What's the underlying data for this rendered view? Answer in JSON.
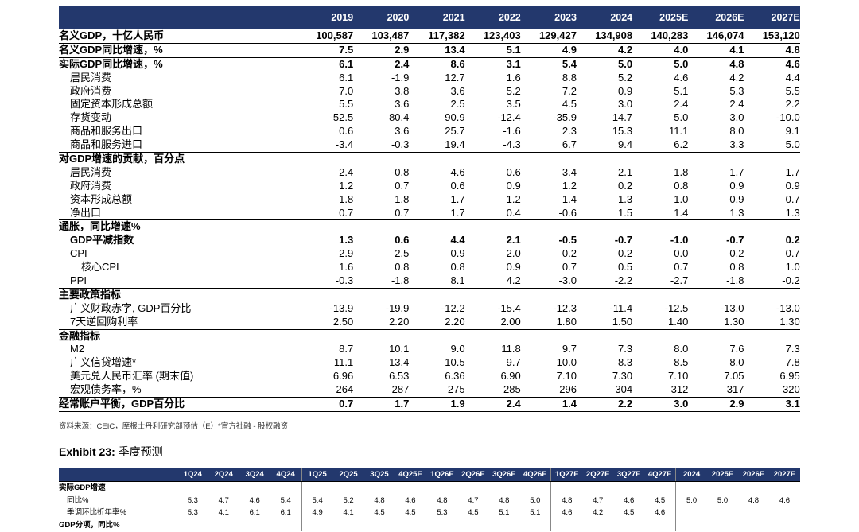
{
  "table1": {
    "years": [
      "2019",
      "2020",
      "2021",
      "2022",
      "2023",
      "2024",
      "2025E",
      "2026E",
      "2027E"
    ],
    "rows": [
      {
        "label": "名义GDP，十亿人民币",
        "values": [
          "100,587",
          "103,487",
          "117,382",
          "123,403",
          "129,427",
          "134,908",
          "140,283",
          "146,074",
          "153,120"
        ],
        "bold": true,
        "indent": 0,
        "line": "sec"
      },
      {
        "label": "名义GDP同比增速，%",
        "values": [
          "7.5",
          "2.9",
          "13.4",
          "5.1",
          "4.9",
          "4.2",
          "4.0",
          "4.1",
          "4.8"
        ],
        "bold": true,
        "indent": 0,
        "line": "thin"
      },
      {
        "label": "实际GDP同比增速，%",
        "values": [
          "6.1",
          "2.4",
          "8.6",
          "3.1",
          "5.4",
          "5.0",
          "5.0",
          "4.8",
          "4.6"
        ],
        "bold": true,
        "indent": 0,
        "line": "sec"
      },
      {
        "label": "居民消费",
        "values": [
          "6.1",
          "-1.9",
          "12.7",
          "1.6",
          "8.8",
          "5.2",
          "4.6",
          "4.2",
          "4.4"
        ],
        "bold": false,
        "indent": 1,
        "line": ""
      },
      {
        "label": "政府消费",
        "values": [
          "7.0",
          "3.8",
          "3.6",
          "5.2",
          "7.2",
          "0.9",
          "5.1",
          "5.3",
          "5.5"
        ],
        "bold": false,
        "indent": 1,
        "line": ""
      },
      {
        "label": "固定资本形成总额",
        "values": [
          "5.5",
          "3.6",
          "2.5",
          "3.5",
          "4.5",
          "3.0",
          "2.4",
          "2.4",
          "2.2"
        ],
        "bold": false,
        "indent": 1,
        "line": ""
      },
      {
        "label": "存货变动",
        "values": [
          "-52.5",
          "80.4",
          "90.9",
          "-12.4",
          "-35.9",
          "14.7",
          "5.0",
          "3.0",
          "-10.0"
        ],
        "bold": false,
        "indent": 1,
        "line": ""
      },
      {
        "label": "商品和服务出口",
        "values": [
          "0.6",
          "3.6",
          "25.7",
          "-1.6",
          "2.3",
          "15.3",
          "11.1",
          "8.0",
          "9.1"
        ],
        "bold": false,
        "indent": 1,
        "line": ""
      },
      {
        "label": "商品和服务进口",
        "values": [
          "-3.4",
          "-0.3",
          "19.4",
          "-4.3",
          "6.7",
          "9.4",
          "6.2",
          "3.3",
          "5.0"
        ],
        "bold": false,
        "indent": 1,
        "line": ""
      },
      {
        "label": "对GDP增速的贡献，百分点",
        "values": [
          "",
          "",
          "",
          "",
          "",
          "",
          "",
          "",
          ""
        ],
        "bold": true,
        "indent": 0,
        "line": "sec"
      },
      {
        "label": "居民消费",
        "values": [
          "2.4",
          "-0.8",
          "4.6",
          "0.6",
          "3.4",
          "2.1",
          "1.8",
          "1.7",
          "1.7"
        ],
        "bold": false,
        "indent": 1,
        "line": ""
      },
      {
        "label": "政府消费",
        "values": [
          "1.2",
          "0.7",
          "0.6",
          "0.9",
          "1.2",
          "0.2",
          "0.8",
          "0.9",
          "0.9"
        ],
        "bold": false,
        "indent": 1,
        "line": ""
      },
      {
        "label": "资本形成总额",
        "values": [
          "1.8",
          "1.8",
          "1.7",
          "1.2",
          "1.4",
          "1.3",
          "1.0",
          "0.9",
          "0.7"
        ],
        "bold": false,
        "indent": 1,
        "line": ""
      },
      {
        "label": "净出口",
        "values": [
          "0.7",
          "0.7",
          "1.7",
          "0.4",
          "-0.6",
          "1.5",
          "1.4",
          "1.3",
          "1.3"
        ],
        "bold": false,
        "indent": 1,
        "line": ""
      },
      {
        "label": "通胀，同比增速%",
        "values": [
          "",
          "",
          "",
          "",
          "",
          "",
          "",
          "",
          ""
        ],
        "bold": true,
        "indent": 0,
        "line": "sec"
      },
      {
        "label": "GDP平减指数",
        "values": [
          "1.3",
          "0.6",
          "4.4",
          "2.1",
          "-0.5",
          "-0.7",
          "-1.0",
          "-0.7",
          "0.2"
        ],
        "bold": true,
        "indent": 1,
        "line": ""
      },
      {
        "label": "CPI",
        "values": [
          "2.9",
          "2.5",
          "0.9",
          "2.0",
          "0.2",
          "0.2",
          "0.0",
          "0.2",
          "0.7"
        ],
        "bold": false,
        "indent": 1,
        "line": ""
      },
      {
        "label": "核心CPI",
        "values": [
          "1.6",
          "0.8",
          "0.8",
          "0.9",
          "0.7",
          "0.5",
          "0.7",
          "0.8",
          "1.0"
        ],
        "bold": false,
        "indent": 2,
        "line": ""
      },
      {
        "label": "PPI",
        "values": [
          "-0.3",
          "-1.8",
          "8.1",
          "4.2",
          "-3.0",
          "-2.2",
          "-2.7",
          "-1.8",
          "-0.2"
        ],
        "bold": false,
        "indent": 1,
        "line": ""
      },
      {
        "label": "主要政策指标",
        "values": [
          "",
          "",
          "",
          "",
          "",
          "",
          "",
          "",
          ""
        ],
        "bold": true,
        "indent": 0,
        "line": "sec"
      },
      {
        "label": "广义财政赤字, GDP百分比",
        "values": [
          "-13.9",
          "-19.9",
          "-12.2",
          "-15.4",
          "-12.3",
          "-11.4",
          "-12.5",
          "-13.0",
          "-13.0"
        ],
        "bold": false,
        "indent": 1,
        "line": ""
      },
      {
        "label": "7天逆回购利率",
        "values": [
          "2.50",
          "2.20",
          "2.20",
          "2.00",
          "1.80",
          "1.50",
          "1.40",
          "1.30",
          "1.30"
        ],
        "bold": false,
        "indent": 1,
        "line": ""
      },
      {
        "label": "金融指标",
        "values": [
          "",
          "",
          "",
          "",
          "",
          "",
          "",
          "",
          ""
        ],
        "bold": true,
        "indent": 0,
        "line": "sec"
      },
      {
        "label": "M2",
        "values": [
          "8.7",
          "10.1",
          "9.0",
          "11.8",
          "9.7",
          "7.3",
          "8.0",
          "7.6",
          "7.3"
        ],
        "bold": false,
        "indent": 1,
        "line": ""
      },
      {
        "label": "广义信贷增速*",
        "values": [
          "11.1",
          "13.4",
          "10.5",
          "9.7",
          "10.0",
          "8.3",
          "8.5",
          "8.0",
          "7.8"
        ],
        "bold": false,
        "indent": 1,
        "line": ""
      },
      {
        "label": "美元兑人民币汇率 (期末值)",
        "values": [
          "6.96",
          "6.53",
          "6.36",
          "6.90",
          "7.10",
          "7.30",
          "7.10",
          "7.05",
          "6.95"
        ],
        "bold": false,
        "indent": 1,
        "line": ""
      },
      {
        "label": "宏观债务率，%",
        "values": [
          "264",
          "287",
          "275",
          "285",
          "296",
          "304",
          "312",
          "317",
          "320"
        ],
        "bold": false,
        "indent": 1,
        "line": ""
      },
      {
        "label": "经常账户平衡，GDP百分比",
        "values": [
          "0.7",
          "1.7",
          "1.9",
          "2.4",
          "1.4",
          "2.2",
          "3.0",
          "2.9",
          "3.1"
        ],
        "bold": true,
        "indent": 0,
        "line": "sec"
      }
    ]
  },
  "source": "资料来源：CEIC，摩根士丹利研究部预估（E）*官方社融 - 股权融资",
  "exhibit": {
    "label": "Exhibit 23:",
    "title": "季度预测"
  },
  "table2": {
    "columns": [
      "1Q24",
      "2Q24",
      "3Q24",
      "4Q24",
      "1Q25",
      "2Q25",
      "3Q25",
      "4Q25E",
      "1Q26E",
      "2Q26E",
      "3Q26E",
      "4Q26E",
      "1Q27E",
      "2Q27E",
      "3Q27E",
      "4Q27E",
      "2024",
      "2025E",
      "2026E",
      "2027E"
    ],
    "rows": [
      {
        "label": "实际GDP增速",
        "values": [
          "",
          "",
          "",
          "",
          "",
          "",
          "",
          "",
          "",
          "",
          "",
          "",
          "",
          "",
          "",
          "",
          "",
          "",
          "",
          ""
        ],
        "type": "bold"
      },
      {
        "label": "同比%",
        "values": [
          "5.3",
          "4.7",
          "4.6",
          "5.4",
          "5.4",
          "5.2",
          "4.8",
          "4.6",
          "4.8",
          "4.7",
          "4.8",
          "5.0",
          "4.8",
          "4.7",
          "4.6",
          "4.5",
          "5.0",
          "5.0",
          "4.8",
          "4.6"
        ],
        "type": "sub"
      },
      {
        "label": "季调环比折年率%",
        "values": [
          "5.3",
          "4.1",
          "6.1",
          "6.1",
          "4.9",
          "4.1",
          "4.5",
          "4.5",
          "5.3",
          "4.5",
          "5.1",
          "5.1",
          "4.6",
          "4.2",
          "4.5",
          "4.6",
          "",
          "",
          "",
          ""
        ],
        "type": "sub"
      },
      {
        "label": "GDP分项，同比%",
        "values": [
          "",
          "",
          "",
          "",
          "",
          "",
          "",
          "",
          "",
          "",
          "",
          "",
          "",
          "",
          "",
          "",
          "",
          "",
          "",
          ""
        ],
        "type": "bold"
      }
    ]
  }
}
